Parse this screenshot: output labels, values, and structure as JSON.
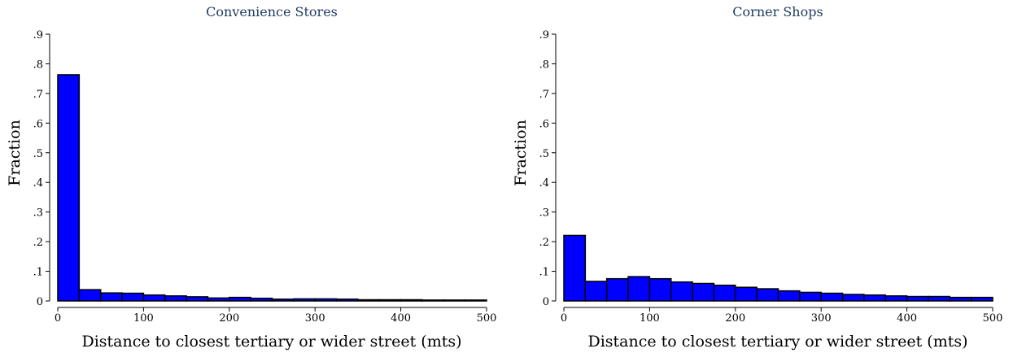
{
  "chart_data": [
    {
      "type": "bar",
      "title": "Convenience Stores",
      "xlabel": "Distance to closest tertiary or wider street (mts)",
      "ylabel": "Fraction",
      "bin_edges": [
        0,
        25,
        50,
        75,
        100,
        125,
        150,
        175,
        200,
        225,
        250,
        275,
        300,
        325,
        350,
        375,
        400,
        425,
        450,
        475,
        500
      ],
      "values": [
        0.763,
        0.038,
        0.027,
        0.026,
        0.02,
        0.017,
        0.014,
        0.01,
        0.012,
        0.009,
        0.006,
        0.007,
        0.007,
        0.006,
        0.004,
        0.004,
        0.004,
        0.003,
        0.003,
        0.003
      ],
      "xlim": [
        0,
        500
      ],
      "ylim": [
        0,
        0.9
      ],
      "xticks": [
        0,
        100,
        200,
        300,
        400,
        500
      ],
      "xtick_labels": [
        "0",
        "100",
        "200",
        "300",
        "400",
        "500"
      ],
      "yticks": [
        0,
        0.1,
        0.2,
        0.3,
        0.4,
        0.5,
        0.6,
        0.7,
        0.8,
        0.9
      ],
      "ytick_labels": [
        "0",
        ".1",
        ".2",
        ".3",
        ".4",
        ".5",
        ".6",
        ".7",
        ".8",
        ".9"
      ],
      "bar_color": "#0000ff",
      "grid": false
    },
    {
      "type": "bar",
      "title": "Corner Shops",
      "xlabel": "Distance to closest tertiary or wider street (mts)",
      "ylabel": "Fraction",
      "bin_edges": [
        0,
        25,
        50,
        75,
        100,
        125,
        150,
        175,
        200,
        225,
        250,
        275,
        300,
        325,
        350,
        375,
        400,
        425,
        450,
        475,
        500
      ],
      "values": [
        0.221,
        0.066,
        0.075,
        0.082,
        0.075,
        0.064,
        0.059,
        0.053,
        0.046,
        0.041,
        0.034,
        0.029,
        0.026,
        0.022,
        0.02,
        0.017,
        0.015,
        0.015,
        0.012,
        0.012
      ],
      "xlim": [
        0,
        500
      ],
      "ylim": [
        0,
        0.9
      ],
      "xticks": [
        0,
        100,
        200,
        300,
        400,
        500
      ],
      "xtick_labels": [
        "0",
        "100",
        "200",
        "300",
        "400",
        "500"
      ],
      "yticks": [
        0,
        0.1,
        0.2,
        0.3,
        0.4,
        0.5,
        0.6,
        0.7,
        0.8,
        0.9
      ],
      "ytick_labels": [
        "0",
        ".1",
        ".2",
        ".3",
        ".4",
        ".5",
        ".6",
        ".7",
        ".8",
        ".9"
      ],
      "bar_color": "#0000ff",
      "grid": false
    }
  ]
}
